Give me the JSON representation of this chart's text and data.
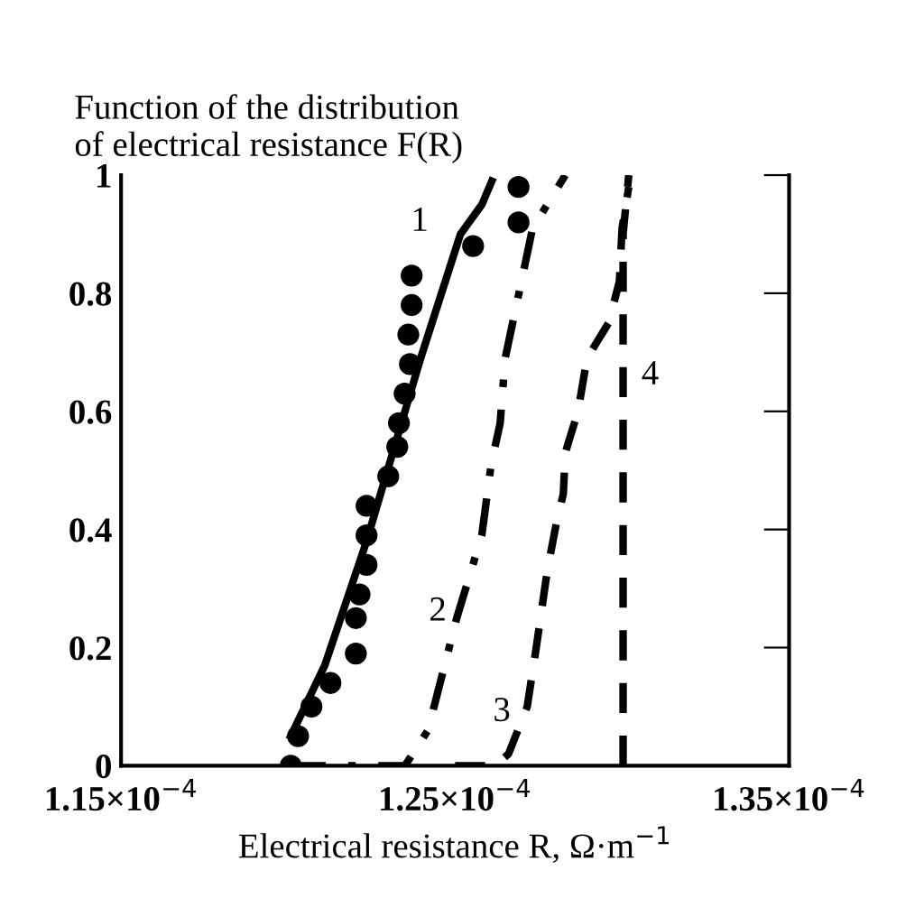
{
  "chart_data": {
    "type": "line",
    "ylabel": "Function of the distribution\nof electrical resistance F(R)",
    "xlabel": "Electrical resistance R, Ω·m$^{−1}$",
    "xlim": [
      0.000115,
      0.000135
    ],
    "xticks": [
      {
        "value": 0.000115,
        "label": "1.15×10$^{−4}$"
      },
      {
        "value": 0.000125,
        "label": "1.25×10$^{−4}$"
      },
      {
        "value": 0.000135,
        "label": "1.35×10$^{−4}$"
      }
    ],
    "ylim": [
      0,
      1
    ],
    "yticks": [
      0,
      0.2,
      0.4,
      0.6,
      0.8,
      1
    ],
    "grid": false,
    "legend": false,
    "series": [
      {
        "line_style": "solid",
        "color": "#000000",
        "x": [
          0.00012008,
          0.0001211,
          0.00012235,
          0.00012397,
          0.00012516,
          0.0001258,
          0.0001261
        ],
        "values": [
          0.05,
          0.17,
          0.38,
          0.69,
          0.9,
          0.95,
          0.99
        ]
      },
      {
        "type": "scatter",
        "marker": "circle",
        "color": "#000000",
        "x": [
          0.00012008,
          0.0001203,
          0.0001207,
          0.00012127,
          0.00012203,
          0.00012203,
          0.00012214,
          0.00012235,
          0.00012235,
          0.00012235,
          0.000123,
          0.00012327,
          0.00012332,
          0.00012349,
          0.00012365,
          0.0001236,
          0.0001237,
          0.0001237,
          0.00012554,
          0.0001269,
          0.0001269
        ],
        "values": [
          0,
          0.05,
          0.1,
          0.14,
          0.19,
          0.25,
          0.29,
          0.34,
          0.39,
          0.44,
          0.49,
          0.54,
          0.58,
          0.63,
          0.68,
          0.73,
          0.78,
          0.83,
          0.88,
          0.92,
          0.98
        ]
      },
      {
        "line_style": "dashdot",
        "color": "#000000",
        "x": [
          0.00012,
          0.0001235,
          0.00012419,
          0.00012505,
          0.0001258,
          0.00012608,
          0.00012635,
          0.0001265,
          0.0001268,
          0.00012732,
          0.0001283
        ],
        "values": [
          0,
          0,
          0.06,
          0.25,
          0.39,
          0.51,
          0.58,
          0.69,
          0.77,
          0.91,
          1.0
        ]
      },
      {
        "line_style": "dashed",
        "color": "#000000",
        "x": [
          0.000125,
          0.0001262,
          0.0001266,
          0.00012716,
          0.00012743,
          0.00012776,
          0.00012803,
          0.00012824,
          0.0001283,
          0.00012868,
          0.00012895,
          0.0001296,
          0.00012992,
          0.00013,
          0.0001302
        ],
        "values": [
          0,
          0,
          0.02,
          0.1,
          0.2,
          0.33,
          0.41,
          0.46,
          0.53,
          0.6,
          0.69,
          0.75,
          0.82,
          0.91,
          0.98
        ]
      },
      {
        "line_style": "dashed",
        "color": "#000000",
        "x": [
          0.00013003,
          0.00013003,
          0.0001302
        ],
        "values": [
          0,
          0.9,
          1.0
        ]
      }
    ],
    "annotations": [
      "1",
      "2",
      "3",
      "4"
    ]
  }
}
